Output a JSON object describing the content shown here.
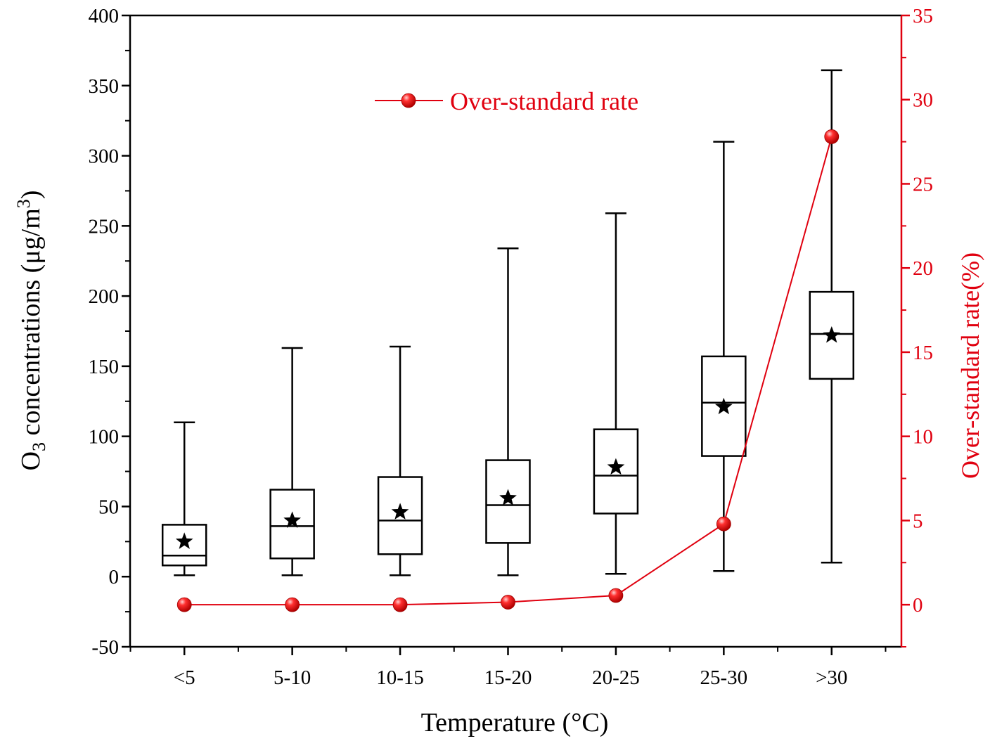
{
  "chart_data": {
    "type": "box",
    "categories": [
      "<5",
      "5-10",
      "10-15",
      "15-20",
      "20-25",
      "25-30",
      ">30"
    ],
    "boxes": [
      {
        "min": 1,
        "q1": 8,
        "median": 15,
        "q3": 37,
        "max": 110,
        "mean": 25
      },
      {
        "min": 1,
        "q1": 13,
        "median": 36,
        "q3": 62,
        "max": 163,
        "mean": 40
      },
      {
        "min": 1,
        "q1": 16,
        "median": 40,
        "q3": 71,
        "max": 164,
        "mean": 46
      },
      {
        "min": 1,
        "q1": 24,
        "median": 51,
        "q3": 83,
        "max": 234,
        "mean": 56
      },
      {
        "min": 2,
        "q1": 45,
        "median": 72,
        "q3": 105,
        "max": 259,
        "mean": 78
      },
      {
        "min": 4,
        "q1": 86,
        "median": 124,
        "q3": 157,
        "max": 310,
        "mean": 121
      },
      {
        "min": 10,
        "q1": 141,
        "median": 173,
        "q3": 203,
        "max": 361,
        "mean": 172
      }
    ],
    "line_series": {
      "name": "Over-standard rate",
      "values": [
        0,
        0,
        0,
        0.15,
        0.55,
        4.8,
        27.8
      ]
    },
    "xlabel": "Temperature (°C)",
    "ylabel_prefix": "O",
    "ylabel_sub": "3",
    "ylabel_mid": " concentrations (μg/m",
    "ylabel_sup": "3",
    "ylabel_suffix": ")",
    "ylabel_right": "Over-standard rate(%)",
    "ylim_left": [
      -50,
      400
    ],
    "yticks_left": [
      -50,
      0,
      50,
      100,
      150,
      200,
      250,
      300,
      350,
      400
    ],
    "ylim_right": [
      -2.5,
      35
    ],
    "yticks_right": [
      0,
      5,
      10,
      15,
      20,
      25,
      30,
      35
    ],
    "legend": "Over-standard rate",
    "legend_position": "top-center",
    "colors": {
      "axis": "#000000",
      "line": "#e0000f",
      "marker": "#ff1a1a"
    }
  }
}
